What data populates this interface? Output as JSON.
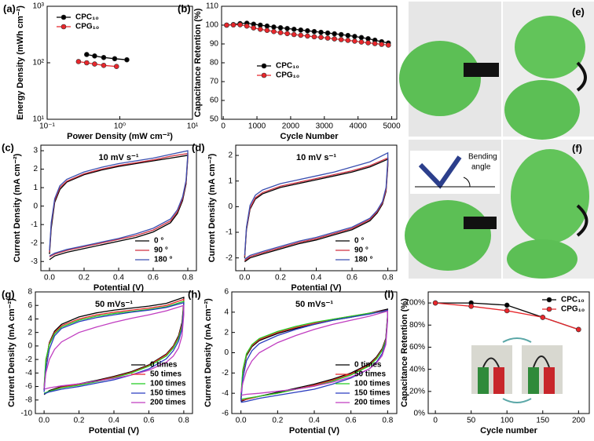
{
  "chart_data": [
    {
      "type": "line",
      "label": "(a)",
      "markers": true,
      "xscale": "log",
      "yscale": "log",
      "xlabel": "Power Density (mW cm⁻²)",
      "ylabel": "Energy Density (mWh cm⁻²)",
      "xlim": [
        0.1,
        10
      ],
      "ylim": [
        10,
        1000
      ],
      "xticks": [
        {
          "value": 0.1,
          "label": "10⁻¹"
        },
        {
          "value": 1,
          "label": "10⁰"
        },
        {
          "value": 10,
          "label": "10¹"
        }
      ],
      "yticks": [
        {
          "value": 10,
          "label": "10¹"
        },
        {
          "value": 100,
          "label": "10²"
        },
        {
          "value": 1000,
          "label": "10³"
        }
      ],
      "legend": "upper left",
      "series": [
        {
          "name": "CPC₁₀",
          "color": "#000000",
          "x": [
            0.35,
            0.45,
            0.6,
            0.85,
            1.25
          ],
          "values": [
            140,
            132,
            124,
            118,
            113
          ]
        },
        {
          "name": "CPG₁₀",
          "color": "#e8262b",
          "x": [
            0.27,
            0.35,
            0.45,
            0.6,
            0.9
          ],
          "values": [
            105,
            100,
            95,
            90,
            86
          ]
        }
      ]
    },
    {
      "type": "line",
      "label": "(b)",
      "markers": true,
      "xlabel": "Cycle Number",
      "ylabel": "Capacitance Retention (%)",
      "xlim": [
        -50,
        5150
      ],
      "ylim": [
        50,
        110
      ],
      "xticks": [
        0,
        1000,
        2000,
        3000,
        4000,
        5000
      ],
      "yticks": [
        50,
        60,
        70,
        80,
        90,
        100,
        110
      ],
      "legend": "center left",
      "x": [
        100,
        300,
        500,
        700,
        900,
        1100,
        1300,
        1500,
        1700,
        1900,
        2100,
        2300,
        2500,
        2700,
        2900,
        3100,
        3300,
        3500,
        3700,
        3900,
        4100,
        4300,
        4500,
        4700,
        4900
      ],
      "series": [
        {
          "name": "CPC₁₀",
          "color": "#000000",
          "values": [
            100,
            100.3,
            100.8,
            101,
            100.5,
            100,
            99.5,
            99,
            98.6,
            98.2,
            97.8,
            97.4,
            97,
            96.6,
            96.2,
            95.8,
            95.4,
            95,
            94.5,
            94,
            93.4,
            92.8,
            92,
            91.2,
            90.5
          ]
        },
        {
          "name": "CPG₁₀",
          "color": "#e8262b",
          "values": [
            100,
            100.1,
            100.2,
            99.5,
            98.5,
            97.8,
            97.2,
            96.6,
            96,
            95.5,
            95,
            94.6,
            94.2,
            93.8,
            93.5,
            93.1,
            92.7,
            92.3,
            91.9,
            91.5,
            91,
            90.6,
            90.2,
            89.8,
            89.4
          ]
        }
      ]
    },
    {
      "type": "line",
      "label": "(c)",
      "annotation": "10 mV s⁻¹",
      "xlabel": "Potential (V)",
      "ylabel": "Current Density (mA cm⁻²)",
      "xlim": [
        -0.05,
        0.85
      ],
      "ylim": [
        -3.5,
        3.3
      ],
      "xticks": [
        {
          "value": 0,
          "label": "0.0"
        },
        0.2,
        0.4,
        0.6,
        0.8
      ],
      "yticks": [
        -3,
        -2,
        -1,
        0,
        1,
        2,
        3
      ],
      "legend": "lower right",
      "x": [
        0,
        0.01,
        0.03,
        0.06,
        0.1,
        0.2,
        0.3,
        0.4,
        0.5,
        0.6,
        0.7,
        0.8,
        0.8,
        0.79,
        0.77,
        0.74,
        0.7,
        0.6,
        0.5,
        0.4,
        0.3,
        0.2,
        0.1,
        0.03,
        0
      ],
      "series": [
        {
          "name": "0 °",
          "color": "#000000",
          "values": [
            -2.6,
            -1.2,
            0.2,
            0.9,
            1.3,
            1.7,
            1.95,
            2.15,
            2.3,
            2.45,
            2.6,
            2.75,
            2.6,
            1.2,
            0.3,
            -0.4,
            -0.9,
            -1.4,
            -1.7,
            -1.9,
            -2.1,
            -2.3,
            -2.5,
            -2.7,
            -2.9
          ]
        },
        {
          "name": "90 °",
          "color": "#d03040",
          "values": [
            -2.5,
            -1.0,
            0.3,
            1.0,
            1.35,
            1.75,
            2.0,
            2.2,
            2.35,
            2.5,
            2.7,
            2.85,
            2.7,
            1.3,
            0.4,
            -0.3,
            -0.8,
            -1.3,
            -1.6,
            -1.8,
            -2.0,
            -2.2,
            -2.4,
            -2.6,
            -2.75
          ]
        },
        {
          "name": "180 °",
          "color": "#3a4fb0",
          "values": [
            -2.4,
            -0.9,
            0.4,
            1.1,
            1.45,
            1.85,
            2.1,
            2.3,
            2.45,
            2.6,
            2.8,
            3.0,
            2.8,
            1.4,
            0.5,
            -0.2,
            -0.7,
            -1.2,
            -1.5,
            -1.75,
            -1.95,
            -2.15,
            -2.35,
            -2.55,
            -2.7
          ]
        }
      ]
    },
    {
      "type": "line",
      "label": "(d)",
      "annotation": "10 mV s⁻¹",
      "xlabel": "Potential (V)",
      "ylabel": "Current Density (mA cm⁻²)",
      "xlim": [
        -0.05,
        0.85
      ],
      "ylim": [
        -2.5,
        2.4
      ],
      "xticks": [
        {
          "value": 0,
          "label": "0.0"
        },
        0.2,
        0.4,
        0.6,
        0.8
      ],
      "yticks": [
        -2,
        -1,
        0,
        1,
        2
      ],
      "legend": "lower right",
      "x": [
        0,
        0.01,
        0.03,
        0.06,
        0.1,
        0.2,
        0.3,
        0.4,
        0.5,
        0.6,
        0.7,
        0.8,
        0.8,
        0.79,
        0.77,
        0.74,
        0.7,
        0.6,
        0.5,
        0.4,
        0.3,
        0.2,
        0.1,
        0.03,
        0
      ],
      "series": [
        {
          "name": "0 °",
          "color": "#000000",
          "values": [
            -2.0,
            -0.9,
            -0.1,
            0.3,
            0.5,
            0.75,
            0.9,
            1.05,
            1.2,
            1.35,
            1.55,
            1.85,
            1.6,
            0.6,
            0.1,
            -0.25,
            -0.55,
            -0.9,
            -1.1,
            -1.3,
            -1.45,
            -1.65,
            -1.85,
            -2.0,
            -2.15
          ]
        },
        {
          "name": "90 °",
          "color": "#d03040",
          "values": [
            -1.95,
            -0.85,
            -0.05,
            0.35,
            0.55,
            0.8,
            0.95,
            1.1,
            1.25,
            1.4,
            1.6,
            1.9,
            1.7,
            0.65,
            0.15,
            -0.2,
            -0.5,
            -0.85,
            -1.05,
            -1.25,
            -1.4,
            -1.6,
            -1.8,
            -1.95,
            -2.1
          ]
        },
        {
          "name": "180 °",
          "color": "#3a4fb0",
          "values": [
            -1.9,
            -0.8,
            0.05,
            0.45,
            0.65,
            0.9,
            1.05,
            1.2,
            1.35,
            1.55,
            1.75,
            2.1,
            1.85,
            0.75,
            0.2,
            -0.15,
            -0.45,
            -0.8,
            -1.0,
            -1.2,
            -1.35,
            -1.55,
            -1.75,
            -1.9,
            -2.05
          ]
        }
      ]
    },
    {
      "type": "line",
      "label": "(g)",
      "annotation": "50 mVs⁻¹",
      "xlabel": "Potential (V)",
      "ylabel": "Current Density (mA cm⁻²)",
      "xlim": [
        -0.05,
        0.85
      ],
      "ylim": [
        -10,
        8
      ],
      "xticks": [
        {
          "value": 0,
          "label": "0.0"
        },
        0.2,
        0.4,
        0.6,
        0.8
      ],
      "yticks": [
        -10,
        -8,
        -6,
        -4,
        -2,
        0,
        2,
        4,
        6,
        8
      ],
      "legend": "lower right",
      "x": [
        0,
        0.01,
        0.03,
        0.06,
        0.1,
        0.2,
        0.3,
        0.4,
        0.5,
        0.6,
        0.7,
        0.8,
        0.8,
        0.79,
        0.77,
        0.74,
        0.7,
        0.6,
        0.5,
        0.4,
        0.3,
        0.2,
        0.1,
        0.03,
        0
      ],
      "series": [
        {
          "name": "0 times",
          "color": "#000000",
          "values": [
            -6.5,
            -2.5,
            0.5,
            2.2,
            3.2,
            4.3,
            4.9,
            5.3,
            5.6,
            5.9,
            6.3,
            7.2,
            6.5,
            3.5,
            1.5,
            0,
            -1.2,
            -2.8,
            -3.8,
            -4.5,
            -5.1,
            -5.6,
            -6.0,
            -6.6,
            -7.2
          ]
        },
        {
          "name": "50 times",
          "color": "#e8262b",
          "values": [
            -6.3,
            -2.3,
            0.4,
            2.0,
            3.0,
            4.0,
            4.6,
            5.0,
            5.3,
            5.6,
            6.0,
            6.9,
            6.2,
            3.2,
            1.3,
            -0.1,
            -1.3,
            -2.9,
            -3.9,
            -4.6,
            -5.2,
            -5.7,
            -6.1,
            -6.7,
            -7.1
          ]
        },
        {
          "name": "100 times",
          "color": "#22cc22",
          "values": [
            -6.0,
            -2.0,
            0.2,
            1.8,
            2.8,
            3.8,
            4.4,
            4.8,
            5.1,
            5.4,
            5.8,
            6.6,
            5.9,
            2.9,
            1.1,
            -0.3,
            -1.5,
            -3.0,
            -4.0,
            -4.7,
            -5.3,
            -5.8,
            -6.2,
            -6.7,
            -7.0
          ]
        },
        {
          "name": "150 times",
          "color": "#2a3cc0",
          "values": [
            -6.8,
            -3.5,
            -0.5,
            1.5,
            2.6,
            3.6,
            4.2,
            4.6,
            5.0,
            5.3,
            5.7,
            6.4,
            5.6,
            2.5,
            0.7,
            -0.7,
            -1.9,
            -3.4,
            -4.3,
            -5.0,
            -5.5,
            -6.0,
            -6.4,
            -6.8,
            -7.1
          ]
        },
        {
          "name": "200 times",
          "color": "#c03cc0",
          "values": [
            -6.2,
            -4.0,
            -2.0,
            -0.5,
            0.6,
            2.0,
            2.8,
            3.5,
            4.1,
            4.6,
            5.2,
            6.0,
            4.6,
            1.5,
            -0.3,
            -1.5,
            -2.4,
            -3.6,
            -4.3,
            -4.8,
            -5.2,
            -5.6,
            -5.9,
            -6.2,
            -6.4
          ]
        }
      ]
    },
    {
      "type": "line",
      "label": "(h)",
      "annotation": "50 mVs⁻¹",
      "xlabel": "Potential (V)",
      "ylabel": "Current Density (mA cm⁻²)",
      "xlim": [
        -0.05,
        0.85
      ],
      "ylim": [
        -6,
        6
      ],
      "xticks": [
        {
          "value": 0,
          "label": "0.0"
        },
        0.2,
        0.4,
        0.6,
        0.8
      ],
      "yticks": [
        -6,
        -4,
        -2,
        0,
        2,
        4,
        6
      ],
      "legend": "lower right",
      "x": [
        0,
        0.01,
        0.03,
        0.06,
        0.1,
        0.2,
        0.3,
        0.4,
        0.5,
        0.6,
        0.7,
        0.8,
        0.8,
        0.79,
        0.77,
        0.74,
        0.7,
        0.6,
        0.5,
        0.4,
        0.3,
        0.2,
        0.1,
        0.03,
        0
      ],
      "series": [
        {
          "name": "0 times",
          "color": "#000000",
          "values": [
            -4.6,
            -2.0,
            -0.3,
            0.6,
            1.2,
            1.9,
            2.4,
            2.8,
            3.2,
            3.5,
            3.9,
            4.3,
            3.7,
            1.4,
            0.4,
            -0.4,
            -1.1,
            -2.0,
            -2.6,
            -3.1,
            -3.5,
            -3.9,
            -4.3,
            -4.6,
            -4.8
          ]
        },
        {
          "name": "50 times",
          "color": "#e8262b",
          "values": [
            -4.5,
            -1.9,
            -0.2,
            0.7,
            1.3,
            2.0,
            2.5,
            2.9,
            3.3,
            3.6,
            3.9,
            4.2,
            3.6,
            1.3,
            0.3,
            -0.5,
            -1.2,
            -2.1,
            -2.7,
            -3.2,
            -3.6,
            -4.0,
            -4.3,
            -4.6,
            -4.7
          ]
        },
        {
          "name": "100 times",
          "color": "#22cc22",
          "values": [
            -4.3,
            -1.7,
            -0.1,
            0.8,
            1.4,
            2.1,
            2.6,
            3.0,
            3.3,
            3.6,
            3.9,
            4.1,
            3.5,
            1.2,
            0.2,
            -0.6,
            -1.3,
            -2.2,
            -2.8,
            -3.3,
            -3.6,
            -4.0,
            -4.3,
            -4.5,
            -4.6
          ]
        },
        {
          "name": "150 times",
          "color": "#2a3cc0",
          "values": [
            -4.8,
            -2.6,
            -0.8,
            0.2,
            0.9,
            1.7,
            2.3,
            2.8,
            3.2,
            3.5,
            3.8,
            4.2,
            3.4,
            1.0,
            -0.1,
            -0.9,
            -1.6,
            -2.5,
            -3.1,
            -3.6,
            -3.9,
            -4.2,
            -4.5,
            -4.8,
            -4.9
          ]
        },
        {
          "name": "200 times",
          "color": "#c03cc0",
          "values": [
            -4.0,
            -3.0,
            -1.8,
            -0.8,
            0,
            1.0,
            1.7,
            2.3,
            2.8,
            3.2,
            3.6,
            4.1,
            3.2,
            0.8,
            -0.3,
            -1.0,
            -1.6,
            -2.4,
            -2.9,
            -3.3,
            -3.6,
            -3.8,
            -4.0,
            -4.1,
            -4.2
          ]
        }
      ]
    },
    {
      "type": "line",
      "label": "(i)",
      "markers": true,
      "xlabel": "Cycle number",
      "ylabel": "Capacitance Retention (%)",
      "xlim": [
        -10,
        215
      ],
      "ylim": [
        0,
        110
      ],
      "xticks": [
        0,
        50,
        100,
        150,
        200
      ],
      "yticks": [
        {
          "value": 0,
          "label": "0%"
        },
        {
          "value": 20,
          "label": "20%"
        },
        {
          "value": 40,
          "label": "40%"
        },
        {
          "value": 60,
          "label": "60%"
        },
        {
          "value": 80,
          "label": "80%"
        },
        {
          "value": 100,
          "label": "100%"
        }
      ],
      "legend": "upper right",
      "x": [
        0,
        50,
        100,
        150,
        200
      ],
      "series": [
        {
          "name": "CPC₁₀",
          "color": "#000000",
          "values": [
            100,
            100,
            98,
            87,
            76
          ]
        },
        {
          "name": "CPG₁₀",
          "color": "#e8262b",
          "values": [
            100,
            97,
            93,
            87,
            76
          ]
        }
      ]
    }
  ],
  "photos": {
    "labels": [
      "(e)",
      "(f)"
    ],
    "annotation": [
      "Bending",
      "angle"
    ]
  }
}
